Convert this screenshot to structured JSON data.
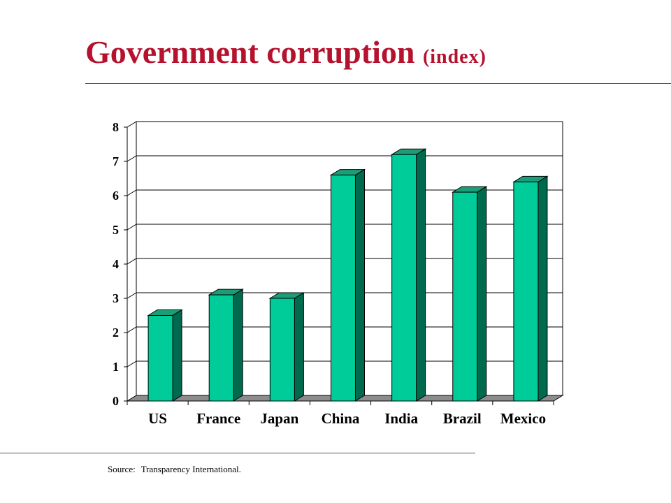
{
  "page": {
    "title": "Government corruption",
    "title_suffix": "(index)",
    "source_label": "Source:",
    "source_text": "Transparency International."
  },
  "colors": {
    "title": "#b5122e",
    "bar_front": "#00cc99",
    "bar_side": "#006a4e",
    "bar_top": "#1b9e78",
    "floor": "#8c8c8c",
    "grid": "#000000"
  },
  "chart_data": {
    "type": "bar",
    "title": "Government corruption (index)",
    "xlabel": "",
    "ylabel": "",
    "categories": [
      "US",
      "France",
      "Japan",
      "China",
      "India",
      "Brazil",
      "Mexico"
    ],
    "values": [
      2.5,
      3.1,
      3.0,
      6.6,
      7.2,
      6.1,
      6.4
    ],
    "ylim": [
      0,
      8
    ],
    "yticks": [
      "0",
      "1",
      "2",
      "3",
      "4",
      "5",
      "6",
      "7",
      "8"
    ],
    "grid": true,
    "legend": "none",
    "style": "3d"
  }
}
